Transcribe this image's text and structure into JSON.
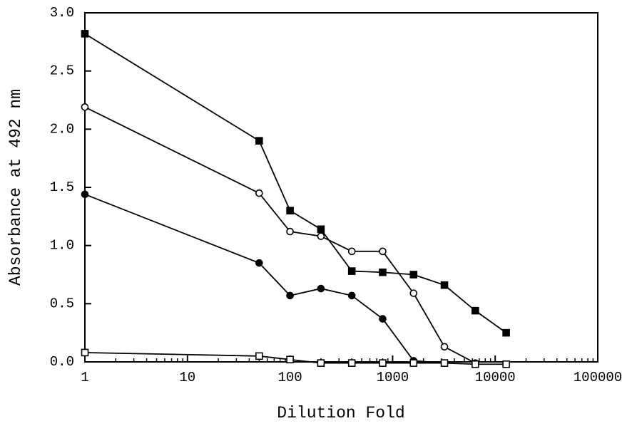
{
  "chart_data": {
    "type": "line",
    "x_label": "Dilution Fold",
    "y_label": "Absorbance at 492 nm",
    "x": [
      1,
      50,
      100,
      200,
      400,
      800,
      1600,
      3200,
      6400,
      12800
    ],
    "series": [
      {
        "marker": "square-filled",
        "color": "#000000",
        "values": [
          2.82,
          1.9,
          1.3,
          1.14,
          0.78,
          0.77,
          0.75,
          0.66,
          0.44,
          0.25
        ]
      },
      {
        "marker": "circle-open",
        "color": "#000000",
        "values": [
          2.19,
          1.45,
          1.12,
          1.08,
          0.95,
          0.95,
          0.59,
          0.13,
          -0.01,
          null
        ]
      },
      {
        "marker": "circle-filled",
        "color": "#000000",
        "values": [
          1.44,
          0.85,
          0.57,
          0.63,
          0.57,
          0.37,
          0.01,
          -0.01,
          null,
          null
        ]
      },
      {
        "marker": "square-open",
        "color": "#000000",
        "values": [
          0.08,
          0.05,
          0.02,
          -0.01,
          -0.01,
          -0.01,
          -0.01,
          -0.01,
          -0.02,
          -0.02
        ]
      }
    ],
    "xscale": "log",
    "xlim": [
      1,
      100000
    ],
    "xticks": [
      1,
      10,
      100,
      1000,
      10000,
      100000
    ],
    "ylim": [
      0,
      3.0
    ],
    "yticks": [
      {
        "value": 0,
        "label": "0.0"
      },
      0.5,
      {
        "value": 1,
        "label": "1.0"
      },
      1.5,
      {
        "value": 2,
        "label": "2.0"
      },
      2.5,
      {
        "value": 3,
        "label": "3.0"
      }
    ]
  }
}
